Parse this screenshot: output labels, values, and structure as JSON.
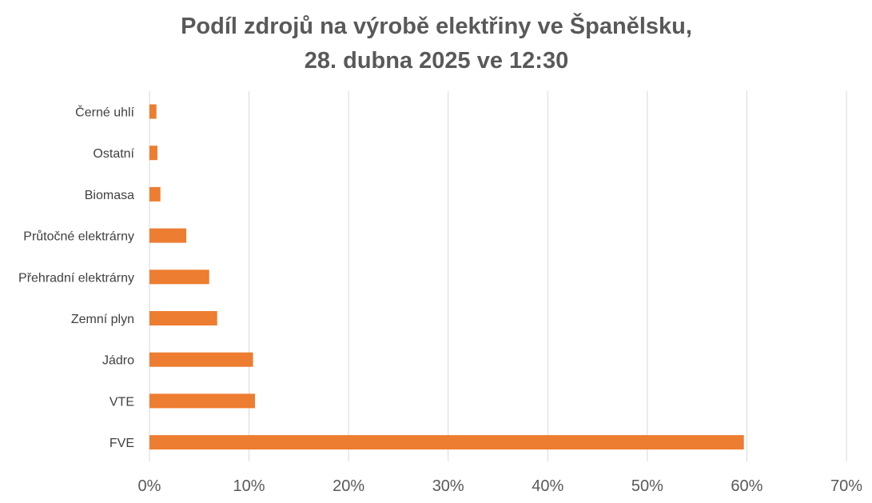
{
  "chart_data": {
    "type": "bar",
    "orientation": "horizontal",
    "title": "Podíl zdrojů na výrobě elektřiny ve Španělsku,",
    "subtitle": "28. dubna 2025 ve 12:30",
    "xlabel": "",
    "ylabel": "",
    "categories": [
      "Černé uhlí",
      "Ostatní",
      "Biomasa",
      "Průtočné elektrárny",
      "Přehradní elektrárny",
      "Zemní plyn",
      "Jádro",
      "VTE",
      "FVE"
    ],
    "values": [
      0.7,
      0.8,
      1.1,
      3.7,
      6.0,
      6.8,
      10.4,
      10.6,
      59.7
    ],
    "xlim": [
      0,
      70
    ],
    "ticks": [
      0,
      10,
      20,
      30,
      40,
      50,
      60,
      70
    ],
    "tick_labels": [
      "0%",
      "10%",
      "20%",
      "30%",
      "40%",
      "50%",
      "60%",
      "70%"
    ],
    "grid": true,
    "legend": "none",
    "bar_color": "#ED7D31"
  }
}
